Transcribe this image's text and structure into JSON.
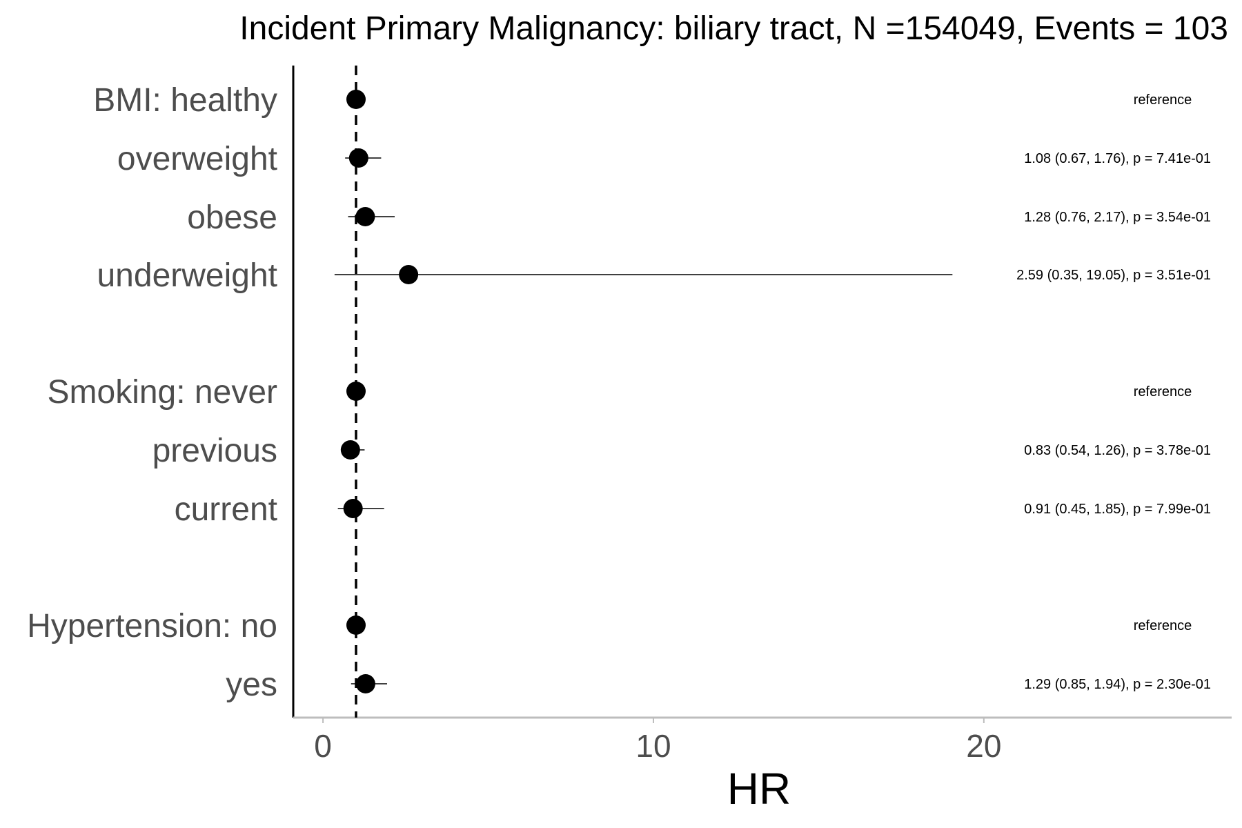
{
  "chart_data": {
    "type": "forest",
    "title": "Incident Primary Malignancy: biliary tract, N =154049, Events = 103",
    "xlabel": "HR",
    "ylabel": "",
    "xlim": [
      -0.9,
      27.5
    ],
    "x_ticks": [
      0,
      10,
      20
    ],
    "x_tick_labels": [
      "0",
      "10",
      "20"
    ],
    "reference_line": 1,
    "grid": false,
    "rows": [
      {
        "label": "BMI: healthy",
        "hr": 1.0,
        "lower": null,
        "upper": null,
        "annotation": "reference"
      },
      {
        "label": "overweight",
        "hr": 1.08,
        "lower": 0.67,
        "upper": 1.76,
        "annotation": "1.08 (0.67, 1.76), p = 7.41e-01"
      },
      {
        "label": "obese",
        "hr": 1.28,
        "lower": 0.76,
        "upper": 2.17,
        "annotation": "1.28 (0.76, 2.17), p = 3.54e-01"
      },
      {
        "label": "underweight",
        "hr": 2.59,
        "lower": 0.35,
        "upper": 19.05,
        "annotation": "2.59 (0.35, 19.05), p = 3.51e-01"
      },
      {
        "label": "Smoking: never",
        "hr": 1.0,
        "lower": null,
        "upper": null,
        "annotation": "reference"
      },
      {
        "label": "previous",
        "hr": 0.83,
        "lower": 0.54,
        "upper": 1.26,
        "annotation": "0.83 (0.54, 1.26), p = 3.78e-01"
      },
      {
        "label": "current",
        "hr": 0.91,
        "lower": 0.45,
        "upper": 1.85,
        "annotation": "0.91 (0.45, 1.85), p = 7.99e-01"
      },
      {
        "label": "Hypertension: no",
        "hr": 1.0,
        "lower": null,
        "upper": null,
        "annotation": "reference"
      },
      {
        "label": "yes",
        "hr": 1.29,
        "lower": 0.85,
        "upper": 1.94,
        "annotation": "1.29 (0.85, 1.94), p = 2.30e-01"
      }
    ]
  }
}
